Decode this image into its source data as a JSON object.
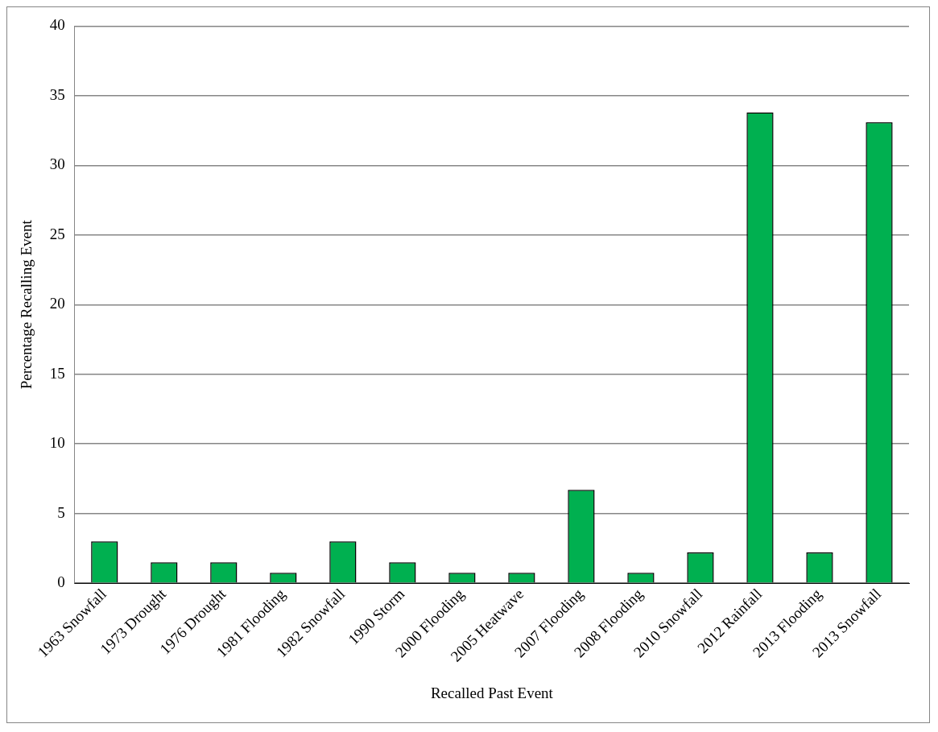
{
  "chart_data": {
    "type": "bar",
    "xlabel": "Recalled Past Event",
    "ylabel": "Percentage Recalling Event",
    "categories": [
      "1963 Snowfall",
      "1973 Drought",
      "1976 Drought",
      "1981 Flooding",
      "1982 Snowfall",
      "1990 Storm",
      "2000 Flooding",
      "2005 Heatwave",
      "2007 Flooding",
      "2008 Flooding",
      "2010 Snowfall",
      "2012 Rainfall",
      "2013 Flooding",
      "2013 Snowfall"
    ],
    "values": [
      3.0,
      1.5,
      1.5,
      0.75,
      3.0,
      1.5,
      0.75,
      0.75,
      6.7,
      0.75,
      2.2,
      33.8,
      2.2,
      33.1
    ],
    "color": "#00b050",
    "ylim": [
      0,
      40
    ],
    "yticks": [
      0,
      5,
      10,
      15,
      20,
      25,
      30,
      35,
      40
    ],
    "grid": "y",
    "legend": false
  }
}
